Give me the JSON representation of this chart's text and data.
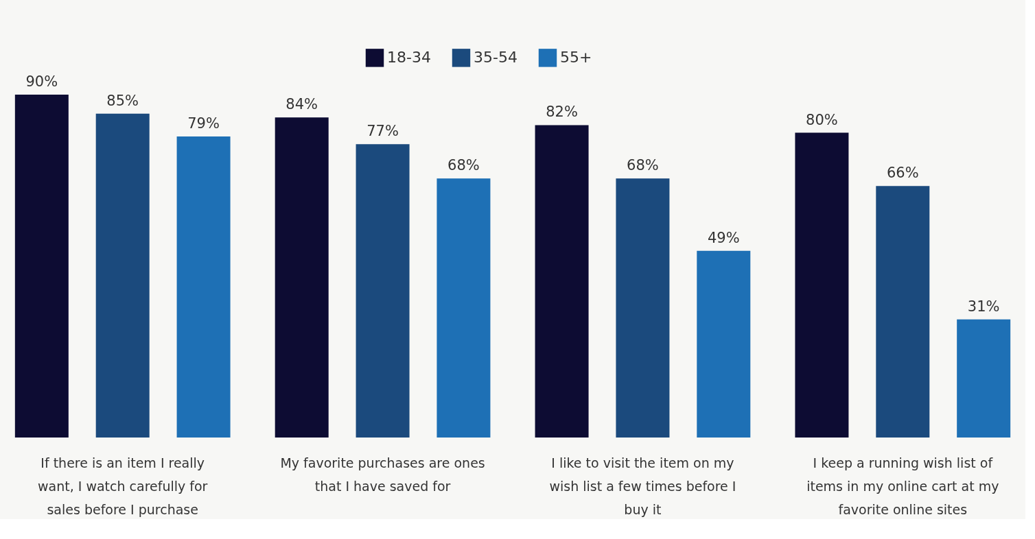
{
  "chart_data": {
    "type": "bar",
    "categories": [
      "If there is an item I really want, I watch carefully for sales before I purchase",
      "My favorite purchases are ones that I have saved for",
      "I like to visit the item on my wish list a few times before I buy it",
      "I keep a running wish list of items in my online cart at my favorite online sites"
    ],
    "series": [
      {
        "name": "18-34",
        "color": "#0d0c33",
        "values": [
          90,
          84,
          82,
          80
        ],
        "value_labels": [
          "90%",
          "84%",
          "82%",
          "80%"
        ]
      },
      {
        "name": "35-54",
        "color": "#1b4a7d",
        "values": [
          85,
          77,
          68,
          66
        ],
        "value_labels": [
          "85%",
          "77%",
          "68%",
          "66%"
        ]
      },
      {
        "name": "55+",
        "color": "#1e70b5",
        "values": [
          79,
          68,
          49,
          31
        ],
        "value_labels": [
          "79%",
          "68%",
          "49%",
          "31%"
        ]
      }
    ],
    "legend": "top",
    "grid": false
  }
}
